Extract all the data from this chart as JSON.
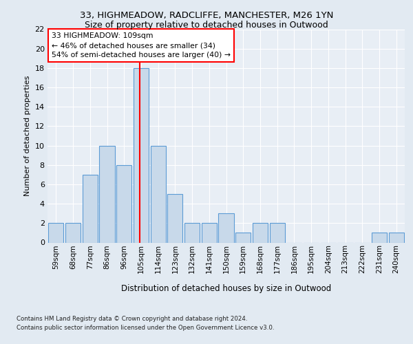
{
  "title_line1": "33, HIGHMEADOW, RADCLIFFE, MANCHESTER, M26 1YN",
  "title_line2": "Size of property relative to detached houses in Outwood",
  "xlabel": "Distribution of detached houses by size in Outwood",
  "ylabel": "Number of detached properties",
  "categories": [
    "59sqm",
    "68sqm",
    "77sqm",
    "86sqm",
    "96sqm",
    "105sqm",
    "114sqm",
    "123sqm",
    "132sqm",
    "141sqm",
    "150sqm",
    "159sqm",
    "168sqm",
    "177sqm",
    "186sqm",
    "195sqm",
    "204sqm",
    "213sqm",
    "222sqm",
    "231sqm",
    "240sqm"
  ],
  "values": [
    2,
    2,
    7,
    10,
    8,
    18,
    10,
    5,
    2,
    2,
    3,
    1,
    2,
    2,
    0,
    0,
    0,
    0,
    0,
    1,
    1
  ],
  "bar_color": "#c8d9ea",
  "bar_edge_color": "#5b9bd5",
  "annotation_line1": "33 HIGHMEADOW: 109sqm",
  "annotation_line2": "← 46% of detached houses are smaller (34)",
  "annotation_line3": "54% of semi-detached houses are larger (40) →",
  "vline_x": 4.94,
  "ylim": [
    0,
    22
  ],
  "yticks": [
    0,
    2,
    4,
    6,
    8,
    10,
    12,
    14,
    16,
    18,
    20,
    22
  ],
  "footnote1": "Contains HM Land Registry data © Crown copyright and database right 2024.",
  "footnote2": "Contains public sector information licensed under the Open Government Licence v3.0.",
  "bg_color": "#e2eaf2",
  "plot_bg_color": "#e8eef5",
  "grid_color": "#ffffff"
}
